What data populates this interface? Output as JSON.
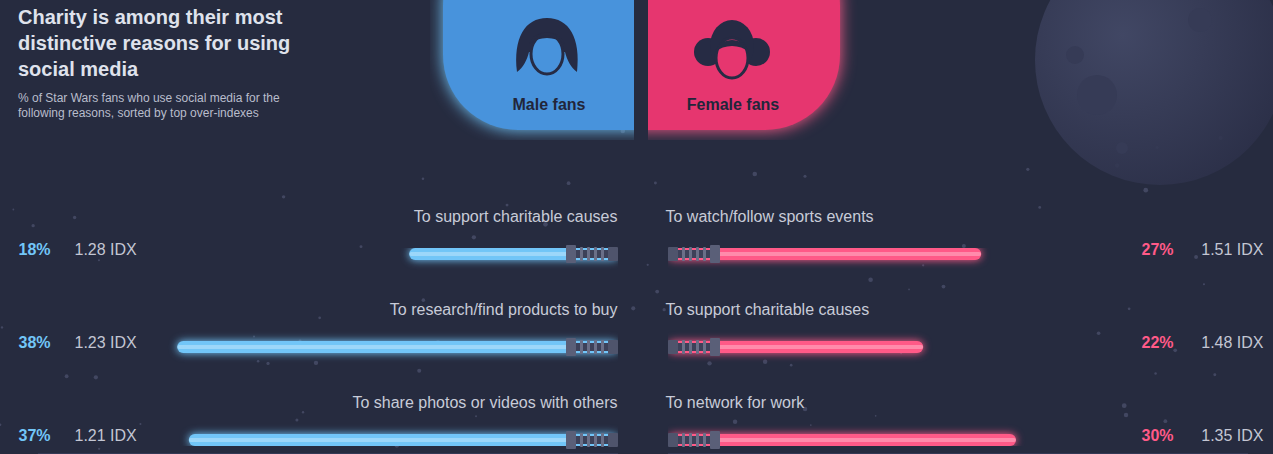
{
  "chart_data": {
    "type": "bar",
    "orientation": "horizontal",
    "title": "Charity is among their most distinctive reasons for using social media",
    "subtitle": "% of Star Wars fans who use social media for the following reasons, sorted by top over-indexes",
    "xlim": [
      0,
      50
    ],
    "tick_labels": false,
    "data_labels": true,
    "series": [
      {
        "name": "Male fans",
        "color": "#72c6f8",
        "categories": [
          "To support charitable causes",
          "To research/find products to buy",
          "To share photos or videos with others"
        ],
        "values": [
          18,
          38,
          37
        ],
        "value_labels": [
          "18%",
          "38%",
          "37%"
        ],
        "index_labels": [
          "1.28 IDX",
          "1.23 IDX",
          "1.21 IDX"
        ]
      },
      {
        "name": "Female fans",
        "color": "#ff5a88",
        "categories": [
          "To watch/follow sports events",
          "To support charitable causes",
          "To network for work"
        ],
        "values": [
          27,
          22,
          30
        ],
        "value_labels": [
          "27%",
          "22%",
          "30%"
        ],
        "index_labels": [
          "1.51 IDX",
          "1.48 IDX",
          "1.35 IDX"
        ]
      }
    ]
  }
}
